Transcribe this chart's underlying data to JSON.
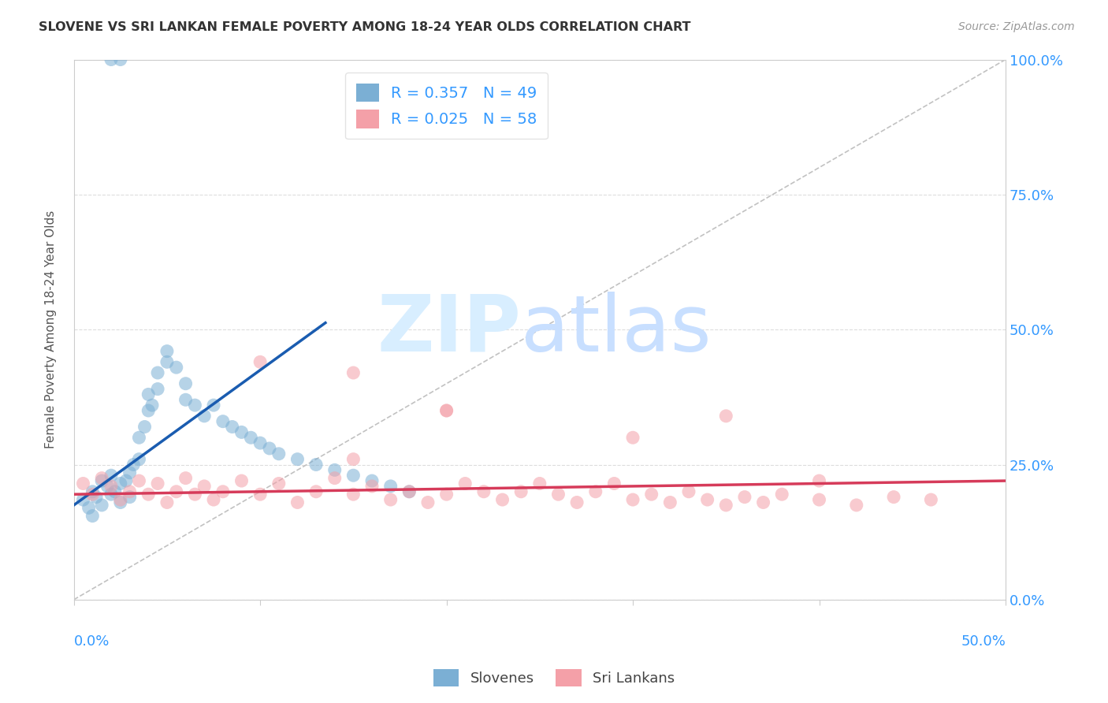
{
  "title": "SLOVENE VS SRI LANKAN FEMALE POVERTY AMONG 18-24 YEAR OLDS CORRELATION CHART",
  "source": "Source: ZipAtlas.com",
  "ylabel": "Female Poverty Among 18-24 Year Olds",
  "ytick_labels": [
    "0.0%",
    "25.0%",
    "50.0%",
    "75.0%",
    "100.0%"
  ],
  "ytick_values": [
    0.0,
    0.25,
    0.5,
    0.75,
    1.0
  ],
  "xlim": [
    0.0,
    0.5
  ],
  "ylim": [
    0.0,
    1.0
  ],
  "slovene_color": "#7BAFD4",
  "srilanka_color": "#F4A0A8",
  "slovene_trend_color": "#1A5CB0",
  "srilanka_trend_color": "#D63B5A",
  "diagonal_color": "#BBBBBB",
  "legend_entry1_label": "R = 0.357   N = 49",
  "legend_entry2_label": "R = 0.025   N = 58",
  "legend_color": "#3399FF",
  "axis_label_color": "#3399FF",
  "title_color": "#333333",
  "source_color": "#999999",
  "grid_color": "#DDDDDD",
  "slovene_x": [
    0.005,
    0.008,
    0.01,
    0.01,
    0.012,
    0.015,
    0.015,
    0.018,
    0.02,
    0.02,
    0.022,
    0.025,
    0.025,
    0.028,
    0.03,
    0.03,
    0.032,
    0.035,
    0.035,
    0.038,
    0.04,
    0.04,
    0.042,
    0.045,
    0.045,
    0.05,
    0.05,
    0.055,
    0.06,
    0.06,
    0.065,
    0.07,
    0.075,
    0.08,
    0.085,
    0.09,
    0.095,
    0.1,
    0.105,
    0.11,
    0.12,
    0.13,
    0.14,
    0.15,
    0.16,
    0.17,
    0.18,
    0.02,
    0.025
  ],
  "slovene_y": [
    0.185,
    0.17,
    0.2,
    0.155,
    0.19,
    0.22,
    0.175,
    0.21,
    0.23,
    0.195,
    0.2,
    0.215,
    0.18,
    0.22,
    0.235,
    0.19,
    0.25,
    0.3,
    0.26,
    0.32,
    0.35,
    0.38,
    0.36,
    0.39,
    0.42,
    0.44,
    0.46,
    0.43,
    0.4,
    0.37,
    0.36,
    0.34,
    0.36,
    0.33,
    0.32,
    0.31,
    0.3,
    0.29,
    0.28,
    0.27,
    0.26,
    0.25,
    0.24,
    0.23,
    0.22,
    0.21,
    0.2,
    1.0,
    1.0
  ],
  "srilanka_x": [
    0.005,
    0.01,
    0.015,
    0.02,
    0.025,
    0.03,
    0.035,
    0.04,
    0.045,
    0.05,
    0.055,
    0.06,
    0.065,
    0.07,
    0.075,
    0.08,
    0.09,
    0.1,
    0.11,
    0.12,
    0.13,
    0.14,
    0.15,
    0.16,
    0.17,
    0.18,
    0.19,
    0.2,
    0.21,
    0.22,
    0.23,
    0.24,
    0.25,
    0.26,
    0.27,
    0.28,
    0.29,
    0.3,
    0.31,
    0.32,
    0.33,
    0.34,
    0.35,
    0.36,
    0.37,
    0.38,
    0.4,
    0.42,
    0.44,
    0.46,
    0.1,
    0.15,
    0.2,
    0.3,
    0.35,
    0.4,
    0.15,
    0.2
  ],
  "srilanka_y": [
    0.215,
    0.195,
    0.225,
    0.21,
    0.185,
    0.2,
    0.22,
    0.195,
    0.215,
    0.18,
    0.2,
    0.225,
    0.195,
    0.21,
    0.185,
    0.2,
    0.22,
    0.195,
    0.215,
    0.18,
    0.2,
    0.225,
    0.195,
    0.21,
    0.185,
    0.2,
    0.18,
    0.195,
    0.215,
    0.2,
    0.185,
    0.2,
    0.215,
    0.195,
    0.18,
    0.2,
    0.215,
    0.185,
    0.195,
    0.18,
    0.2,
    0.185,
    0.175,
    0.19,
    0.18,
    0.195,
    0.185,
    0.175,
    0.19,
    0.185,
    0.44,
    0.26,
    0.35,
    0.3,
    0.34,
    0.22,
    0.42,
    0.35
  ]
}
